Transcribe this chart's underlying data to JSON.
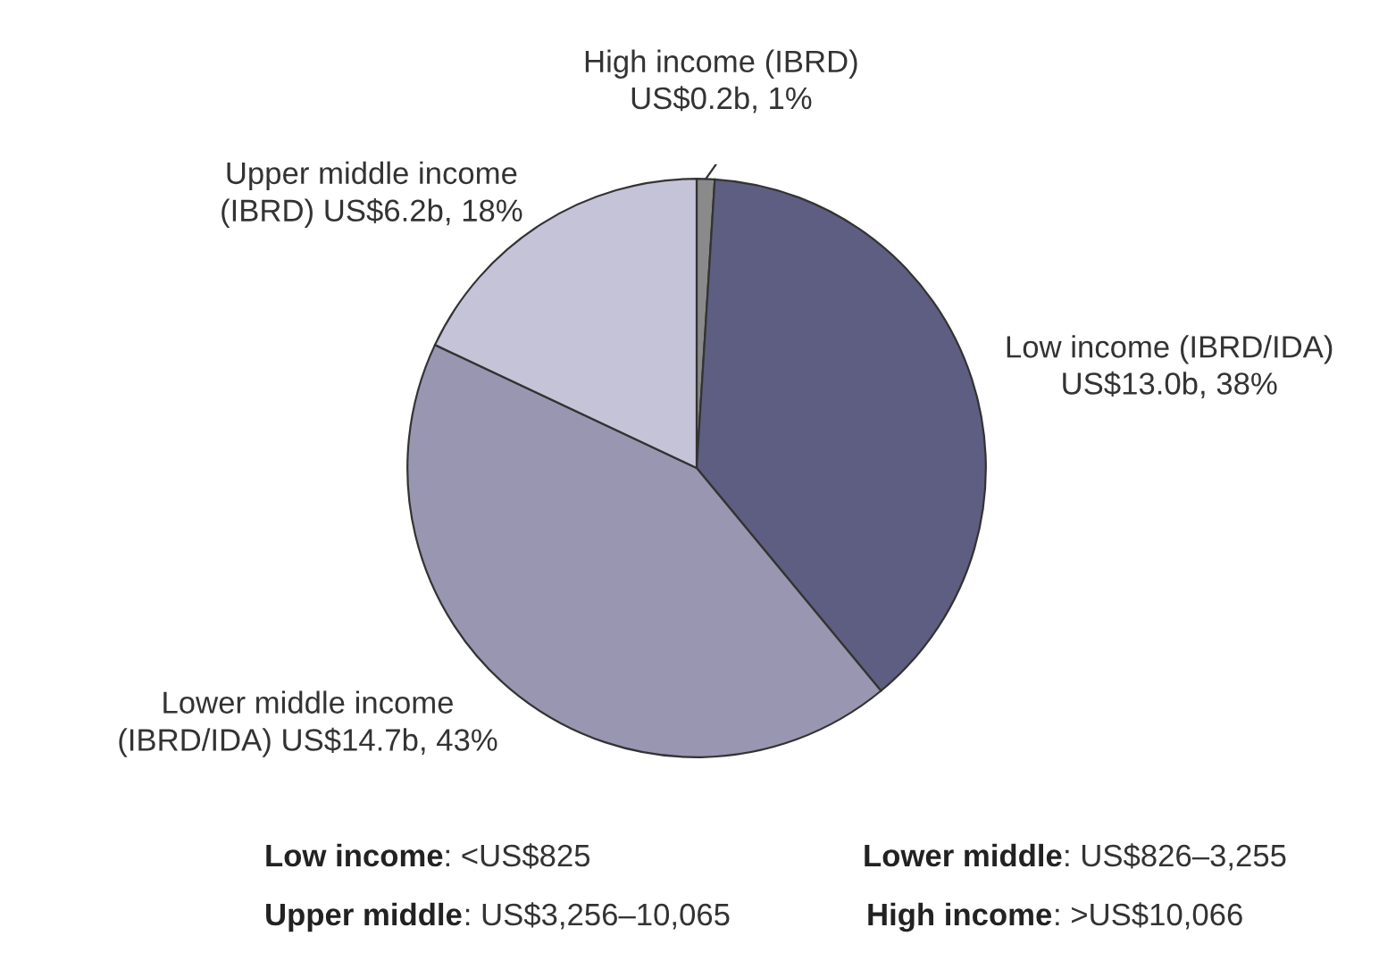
{
  "chart_data": {
    "type": "pie",
    "categories": [
      "High income (IBRD)",
      "Low income (IBRD/IDA)",
      "Lower middle income (IBRD/IDA)",
      "Upper middle income (IBRD)"
    ],
    "values": [
      1,
      38,
      43,
      18
    ],
    "value_labels": [
      "US$0.2b, 1%",
      "US$13.0b, 38%",
      "US$14.7b, 43%",
      "US$6.2b, 18%"
    ],
    "colors": [
      "#8a8a8a",
      "#5e5e82",
      "#9896b0",
      "#c5c3d7"
    ],
    "annotations": [
      "Low income: <US$825",
      "Lower middle: US$826–3,255",
      "Upper middle: US$3,256–10,065",
      "High income: >US$10,066"
    ]
  }
}
